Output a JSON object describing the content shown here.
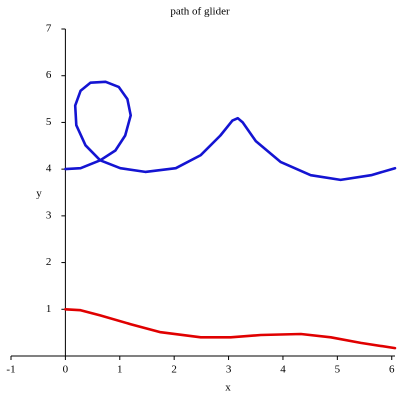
{
  "chart_data": {
    "type": "line",
    "title": "path of glider",
    "x_label": "x",
    "y_label": "y",
    "series": [
      {
        "color": "#1414d2",
        "x": [
          0,
          0.28,
          0.64,
          0.92,
          1.1,
          1.2,
          1.14,
          0.98,
          0.74,
          0.46,
          0.28,
          0.18,
          0.2,
          0.37,
          0.64,
          1.01,
          1.47,
          2.03,
          2.49,
          2.85,
          3.07,
          3.17,
          3.26,
          3.5,
          3.96,
          4.51,
          5.06,
          5.62,
          6.06
        ],
        "values": [
          4.0,
          4.02,
          4.19,
          4.4,
          4.72,
          5.15,
          5.5,
          5.76,
          5.87,
          5.85,
          5.68,
          5.36,
          4.94,
          4.51,
          4.19,
          4.02,
          3.94,
          4.02,
          4.3,
          4.72,
          5.04,
          5.09,
          5.0,
          4.6,
          4.15,
          3.87,
          3.77,
          3.87,
          4.02
        ]
      },
      {
        "color": "#e00000",
        "x": [
          0,
          0.28,
          0.64,
          1.2,
          1.75,
          2.49,
          3.04,
          3.59,
          4.33,
          4.88,
          5.43,
          6.06
        ],
        "values": [
          1.0,
          0.98,
          0.87,
          0.68,
          0.51,
          0.4,
          0.4,
          0.45,
          0.47,
          0.4,
          0.28,
          0.17
        ]
      }
    ],
    "xlim": [
      -1,
      6.06
    ],
    "ylim": [
      0,
      7
    ],
    "xticks": [
      -1,
      0,
      1,
      2,
      3,
      4,
      5,
      6
    ],
    "yticks": [
      1,
      2,
      3,
      4,
      5,
      6,
      7
    ]
  }
}
